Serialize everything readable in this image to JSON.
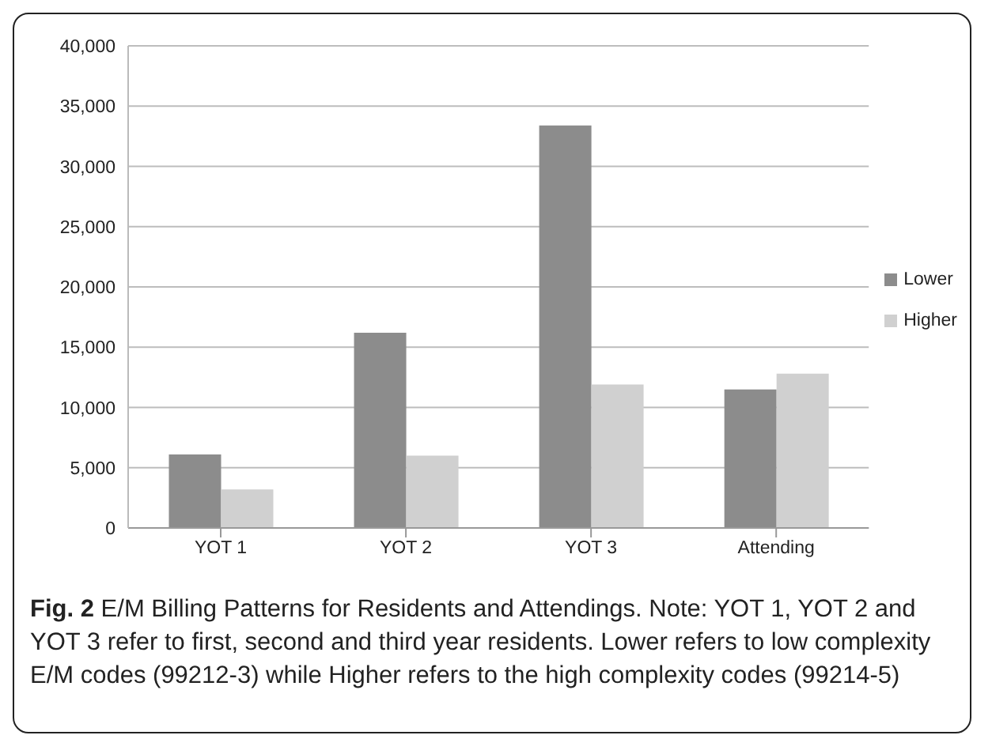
{
  "chart_data": {
    "type": "bar",
    "categories": [
      "YOT 1",
      "YOT 2",
      "YOT 3",
      "Attending"
    ],
    "series": [
      {
        "name": "Lower",
        "color": "#8c8c8c",
        "values": [
          6100,
          16200,
          33400,
          11500
        ]
      },
      {
        "name": "Higher",
        "color": "#d0d0d0",
        "values": [
          3200,
          6000,
          11900,
          12800
        ]
      }
    ],
    "ylim": [
      0,
      40000
    ],
    "yticks": [
      0,
      {
        "value": 5000,
        "label": "5,000"
      },
      {
        "value": 10000,
        "label": "10,000"
      },
      {
        "value": 15000,
        "label": "15,000"
      },
      {
        "value": 20000,
        "label": "20,000"
      },
      {
        "value": 25000,
        "label": "25,000"
      },
      {
        "value": 30000,
        "label": "30,000"
      },
      {
        "value": 35000,
        "label": "35,000"
      },
      {
        "value": 40000,
        "label": "40,000"
      }
    ],
    "grid": "y",
    "legend": "right",
    "annotations": [
      "Fig. 2 E/M Billing Patterns for Residents and Attendings. Note: YOT 1, YOT 2 and YOT 3 refer to first, second and third year residents. Lower refers to low complexity E/M codes (99212-3) while Higher refers to the high complexity codes (99214-5)"
    ]
  }
}
